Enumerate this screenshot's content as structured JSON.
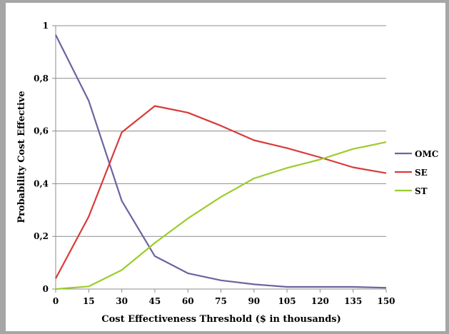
{
  "chart_data": {
    "type": "line",
    "title": "",
    "xlabel": "Cost Effectiveness Threshold ($ in thousands)",
    "ylabel": "Probability Cost Effective",
    "x": [
      0,
      15,
      30,
      45,
      60,
      75,
      90,
      105,
      120,
      135,
      150
    ],
    "x_tick_labels": [
      "0",
      "15",
      "30",
      "45",
      "60",
      "75",
      "90",
      "105",
      "120",
      "135",
      "150"
    ],
    "y_tick_labels": [
      "0",
      "0,2",
      "0,4",
      "0,6",
      "0,8",
      "1"
    ],
    "y_ticks": [
      0,
      0.2,
      0.4,
      0.6,
      0.8,
      1
    ],
    "xlim": [
      0,
      150
    ],
    "ylim": [
      0,
      1
    ],
    "grid": "horizontal",
    "legend_position": "right",
    "series": [
      {
        "name": "OMC",
        "color": "#6a649e",
        "values": [
          0.965,
          0.715,
          0.335,
          0.125,
          0.06,
          0.033,
          0.018,
          0.008,
          0.008,
          0.008,
          0.005
        ]
      },
      {
        "name": "SE",
        "color": "#d93a3a",
        "values": [
          0.04,
          0.275,
          0.595,
          0.695,
          0.67,
          0.62,
          0.565,
          0.535,
          0.5,
          0.462,
          0.44
        ]
      },
      {
        "name": "ST",
        "color": "#9ccc2c",
        "values": [
          0.0,
          0.01,
          0.072,
          0.175,
          0.268,
          0.35,
          0.42,
          0.46,
          0.492,
          0.532,
          0.558
        ]
      }
    ]
  }
}
